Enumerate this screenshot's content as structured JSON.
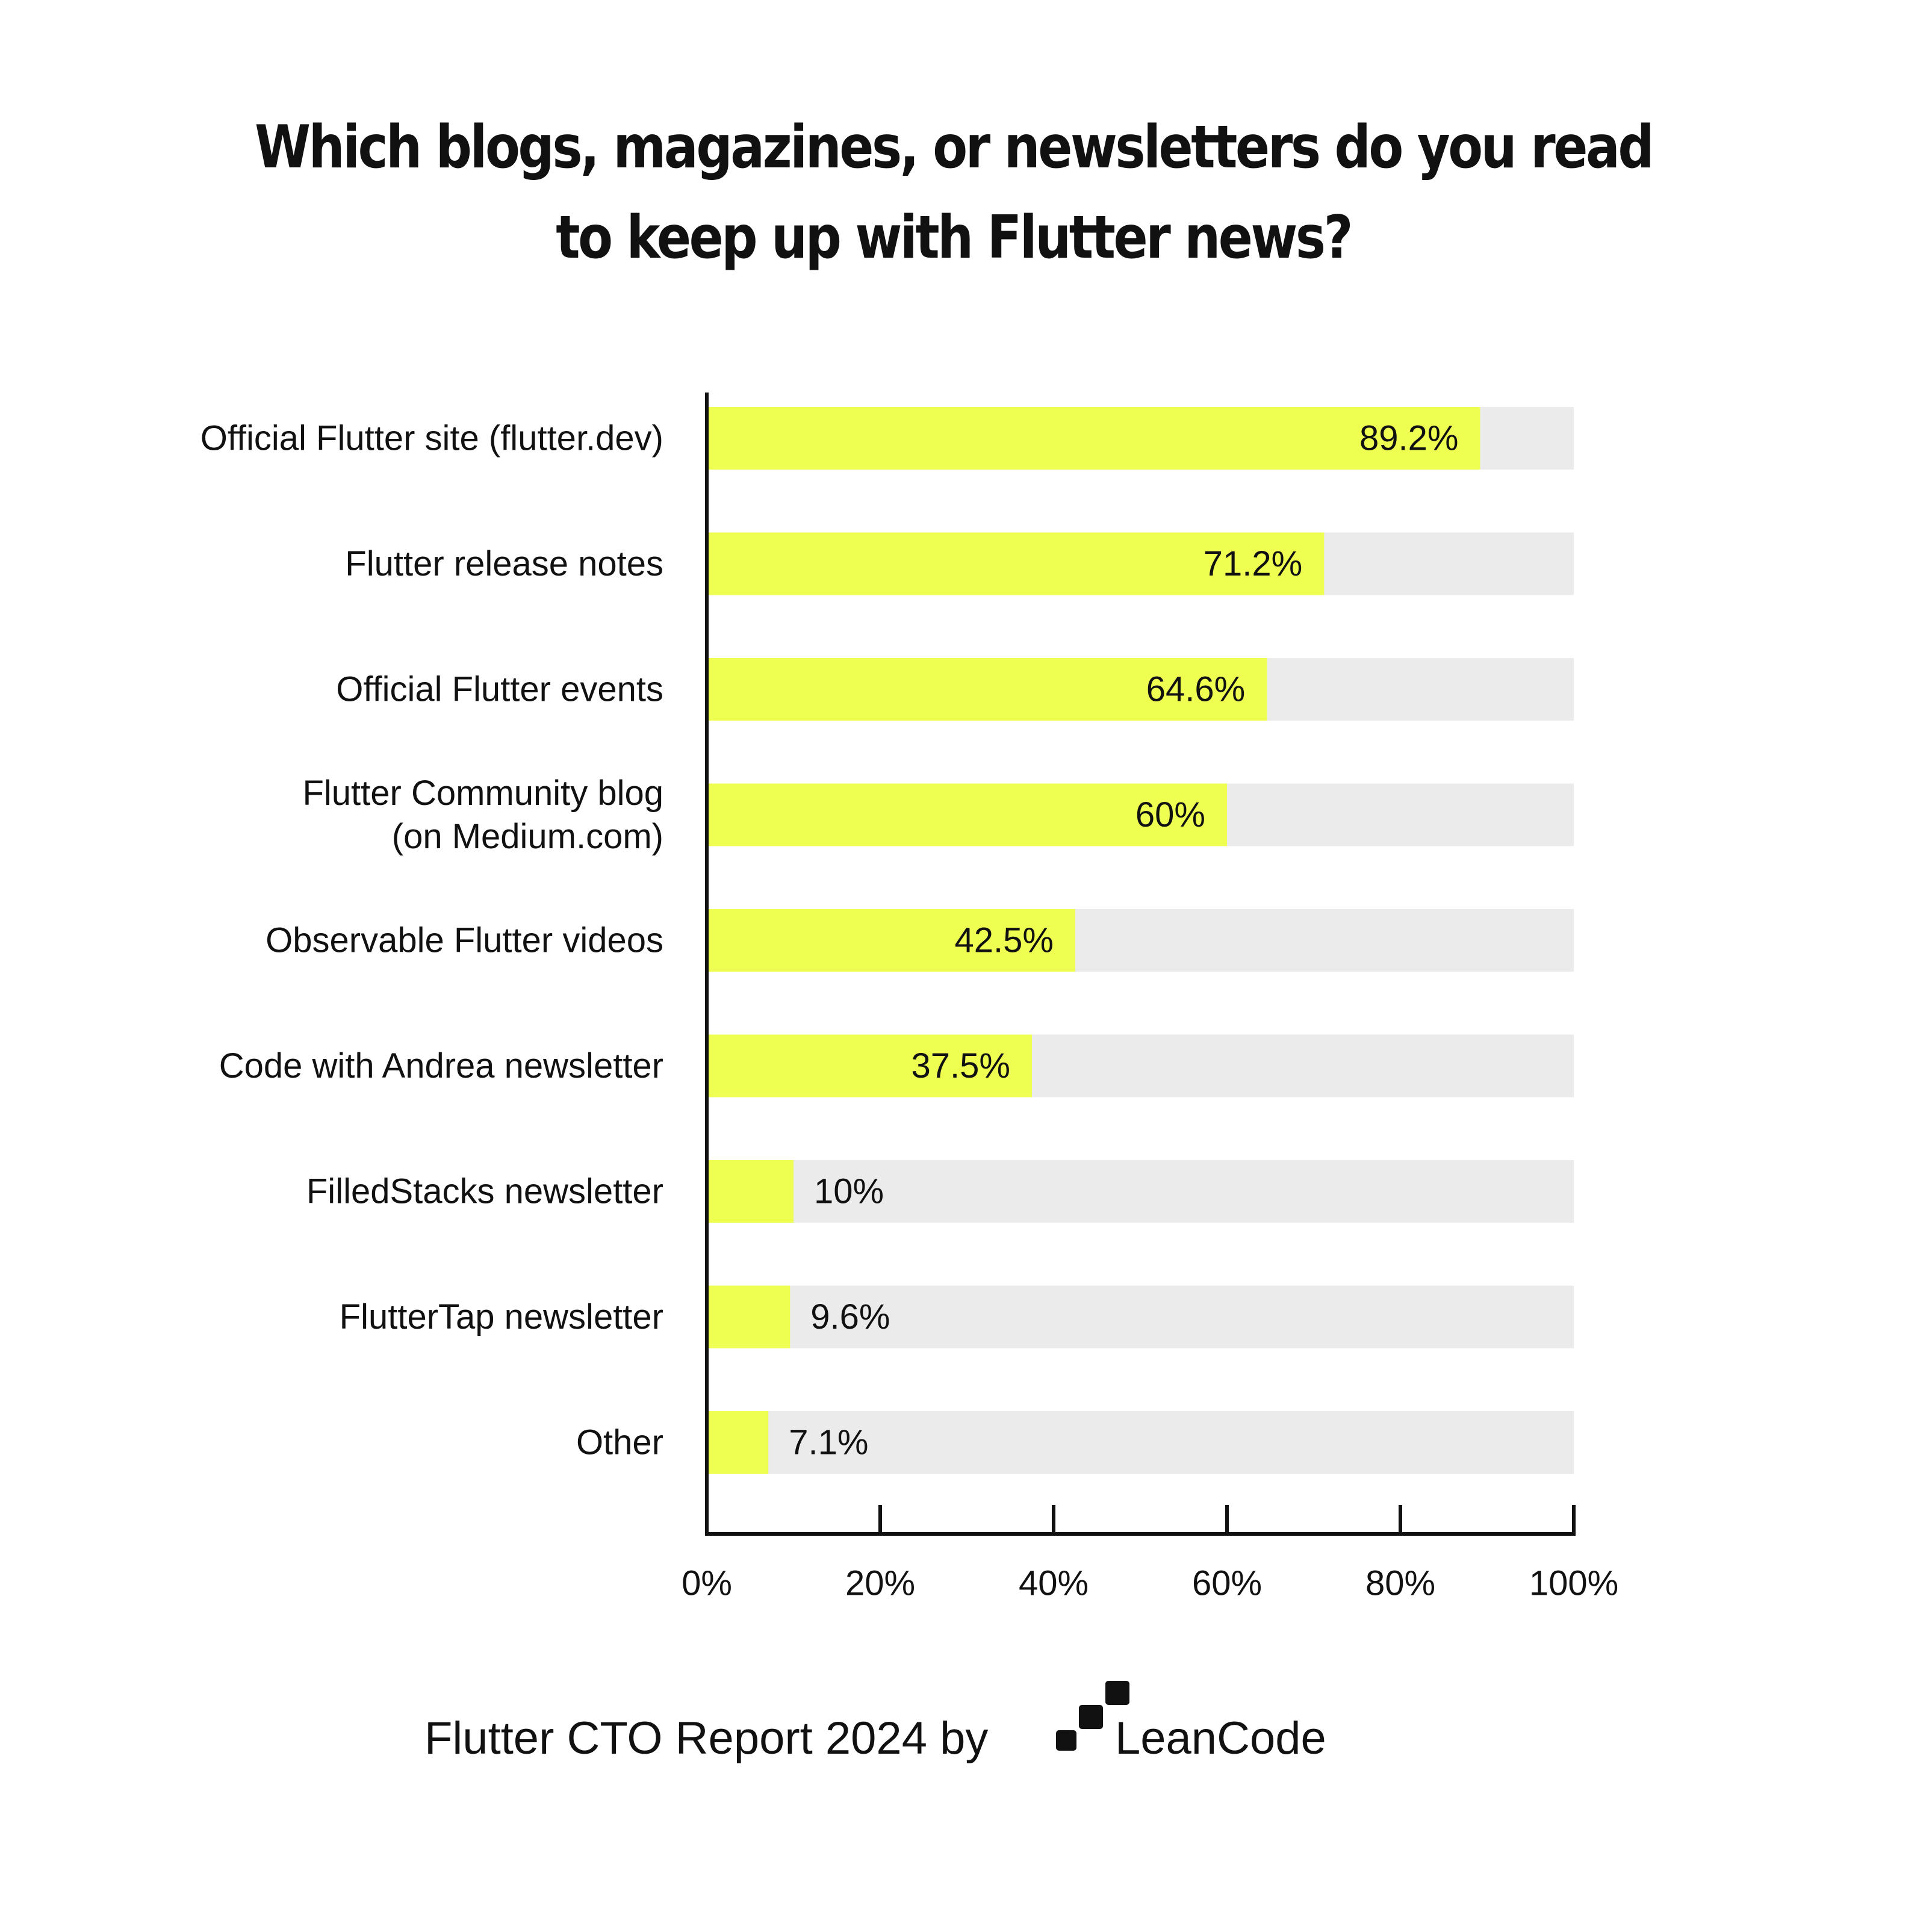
{
  "chart_data": {
    "type": "bar",
    "orientation": "horizontal",
    "title": [
      "Which blogs, magazines, or newsletters do you read",
      "to keep up with Flutter news?"
    ],
    "categories": [
      [
        "Official Flutter site (flutter.dev)"
      ],
      [
        "Flutter release notes"
      ],
      [
        "Official Flutter events"
      ],
      [
        "Flutter Community blog",
        "(on Medium.com)"
      ],
      [
        "Observable Flutter videos"
      ],
      [
        "Code with Andrea newsletter"
      ],
      [
        "FilledStacks newsletter"
      ],
      [
        "FlutterTap newsletter"
      ],
      [
        "Other"
      ]
    ],
    "values": [
      89.2,
      71.2,
      64.6,
      60,
      42.5,
      37.5,
      10,
      9.6,
      7.1
    ],
    "value_labels": [
      "89.2%",
      "71.2%",
      "64.6%",
      "60%",
      "42.5%",
      "37.5%",
      "10%",
      "9.6%",
      "7.1%"
    ],
    "xlim": [
      0,
      100
    ],
    "xticks": [
      0,
      20,
      40,
      60,
      80,
      100
    ],
    "xtick_labels": [
      "0%",
      "20%",
      "40%",
      "60%",
      "80%",
      "100%"
    ],
    "grid": false,
    "legend": "none",
    "colors": {
      "bar": "#EEFF52",
      "track": "#EBEBEB",
      "axis": "#111111",
      "text": "#111111"
    }
  },
  "footer": {
    "text": "Flutter CTO Report 2024 by",
    "brand": "LeanCode",
    "logo_icon": "leancode-steps-icon"
  }
}
